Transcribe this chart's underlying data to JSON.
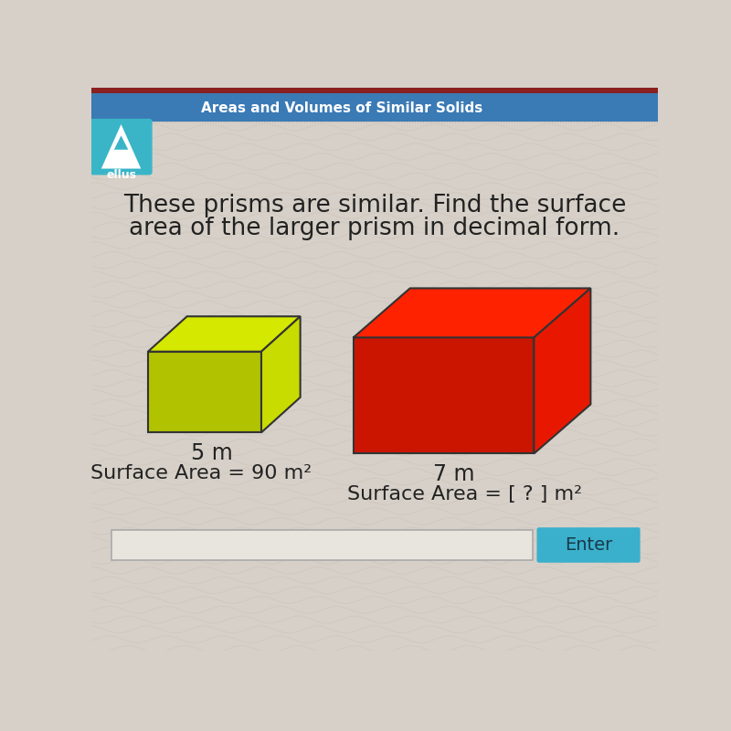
{
  "title_line1": "These prisms are similar. Find the surface",
  "title_line2": "area of the larger prism in decimal form.",
  "header_text": "Areas and Volumes of Similar Solids",
  "header_bg": "#3a7ab5",
  "logo_bg": "#3ab5c8",
  "logo_text": "ellus",
  "background_color": "#d6d0c8",
  "small_prism_top_color": "#d4e800",
  "small_prism_front_color": "#b0c200",
  "small_prism_side_color": "#c8dc00",
  "large_prism_top_color": "#ff2200",
  "large_prism_front_color": "#cc1500",
  "large_prism_side_color": "#e81800",
  "small_label": "5 m",
  "large_label": "7 m",
  "small_sa_text": "Surface Area = 90 m²",
  "large_sa_text": "Surface Area = [ ? ] m²",
  "enter_button_color": "#3ab0cc",
  "enter_button_text": "Enter",
  "text_color": "#222222",
  "title_fontsize": 19,
  "label_fontsize": 17,
  "sa_fontsize": 16,
  "wavy_bg_color": "#cdc8be",
  "input_box_color": "#e8e5de"
}
